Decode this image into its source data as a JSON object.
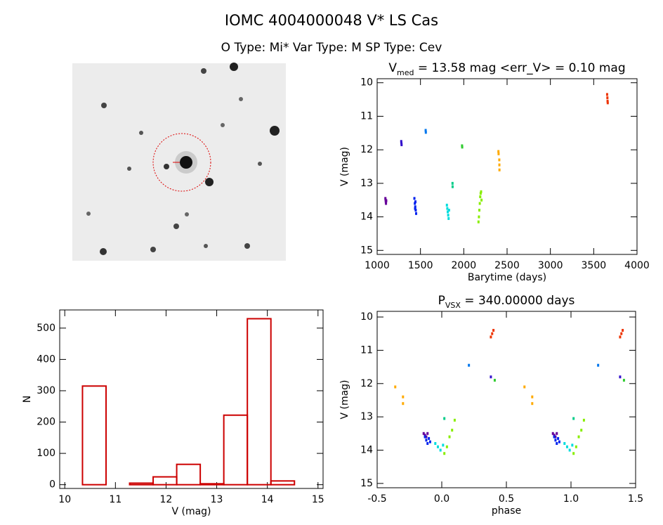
{
  "header": {
    "title": "IOMC 4004000048    V* LS Cas",
    "subtitle": "O Type: Mi*  Var Type: M  SP Type: Cev"
  },
  "chart_data": [
    {
      "type": "scatter",
      "title_parts": [
        "V",
        "med",
        " = 13.58 mag <err_V> = 0.10 mag"
      ],
      "xlabel": "Barytime (days)",
      "ylabel": "V (mag)",
      "xlim": [
        1000,
        4000
      ],
      "xticks": [
        1000,
        1500,
        2000,
        2500,
        3000,
        3500,
        4000
      ],
      "ylim": [
        15.12,
        9.88
      ],
      "yticks": [
        10,
        11,
        12,
        13,
        14,
        15
      ],
      "series": [
        {
          "color": "#660099",
          "x": [
            1095,
            1098,
            1100,
            1102,
            1105
          ],
          "values": [
            13.45,
            13.5,
            13.55,
            13.6,
            13.52
          ]
        },
        {
          "color": "#3311cc",
          "x": [
            1278,
            1280,
            1282
          ],
          "values": [
            11.75,
            11.8,
            11.85
          ]
        },
        {
          "color": "#0022ee",
          "x": [
            1430,
            1435,
            1440,
            1445,
            1450,
            1442,
            1438
          ],
          "values": [
            13.45,
            13.6,
            13.7,
            13.8,
            13.9,
            13.55,
            13.75
          ]
        },
        {
          "color": "#0077ee",
          "x": [
            1560,
            1562
          ],
          "values": [
            11.42,
            11.48
          ]
        },
        {
          "color": "#00dddd",
          "x": [
            1805,
            1810,
            1815,
            1820,
            1825,
            1830
          ],
          "values": [
            13.65,
            13.75,
            13.85,
            13.95,
            14.05,
            13.8
          ]
        },
        {
          "color": "#00cc88",
          "x": [
            1870,
            1871
          ],
          "values": [
            13.0,
            13.1
          ]
        },
        {
          "color": "#33cc33",
          "x": [
            1980,
            1982
          ],
          "values": [
            11.88,
            11.92
          ]
        },
        {
          "color": "#88ee00",
          "x": [
            2170,
            2175,
            2180,
            2185,
            2190,
            2195,
            2200,
            2205
          ],
          "values": [
            14.15,
            14.0,
            13.8,
            13.6,
            13.4,
            13.3,
            13.25,
            13.5
          ]
        },
        {
          "color": "#ffaa00",
          "x": [
            2400,
            2402,
            2410,
            2411,
            2412
          ],
          "values": [
            12.05,
            12.12,
            12.3,
            12.45,
            12.6
          ]
        },
        {
          "color": "#ee3300",
          "x": [
            3655,
            3658,
            3660,
            3662
          ],
          "values": [
            10.35,
            10.45,
            10.55,
            10.6
          ]
        }
      ]
    },
    {
      "type": "scatter",
      "title_parts": [
        "P",
        "VSX",
        " = 340.00000 days"
      ],
      "xlabel": "phase",
      "ylabel": "V (mag)",
      "xlim": [
        -0.5,
        1.5
      ],
      "xticks": [
        -0.5,
        {
          "value": 0,
          "label": "0.0"
        },
        0.5,
        {
          "value": 1,
          "label": "1.0"
        },
        1.5
      ],
      "ylim": [
        15.13,
        9.83
      ],
      "yticks": [
        10,
        11,
        12,
        13,
        14,
        15
      ],
      "series": [
        {
          "color": "#660099",
          "x": [
            -0.14,
            -0.13,
            -0.12,
            -0.11,
            0.86,
            0.87,
            0.88,
            0.89
          ],
          "values": [
            13.5,
            13.55,
            13.6,
            13.5,
            13.5,
            13.55,
            13.6,
            13.5
          ]
        },
        {
          "color": "#3311cc",
          "x": [
            0.38,
            1.38
          ],
          "values": [
            11.8,
            11.8
          ]
        },
        {
          "color": "#0022ee",
          "x": [
            -0.13,
            -0.12,
            -0.11,
            -0.1,
            -0.09,
            0.87,
            0.88,
            0.89,
            0.9,
            0.91
          ],
          "values": [
            13.6,
            13.7,
            13.8,
            13.65,
            13.75,
            13.6,
            13.7,
            13.8,
            13.65,
            13.75
          ]
        },
        {
          "color": "#0077ee",
          "x": [
            0.21,
            1.21
          ],
          "values": [
            11.45,
            11.45
          ]
        },
        {
          "color": "#00dddd",
          "x": [
            -0.05,
            -0.03,
            -0.01,
            0.01,
            0.95,
            0.97,
            0.99,
            1.01
          ],
          "values": [
            13.8,
            13.9,
            14.0,
            13.85,
            13.8,
            13.9,
            14.0,
            13.85
          ]
        },
        {
          "color": "#00cc88",
          "x": [
            0.02,
            1.02
          ],
          "values": [
            13.05,
            13.05
          ]
        },
        {
          "color": "#33cc33",
          "x": [
            0.41,
            1.41
          ],
          "values": [
            11.9,
            11.9
          ]
        },
        {
          "color": "#88ee00",
          "x": [
            0.02,
            0.04,
            0.06,
            0.08,
            0.1,
            1.02,
            1.04,
            1.06,
            1.08,
            1.1
          ],
          "values": [
            14.1,
            13.9,
            13.6,
            13.4,
            13.1,
            14.1,
            13.9,
            13.6,
            13.4,
            13.1
          ]
        },
        {
          "color": "#ffaa00",
          "x": [
            -0.36,
            -0.3,
            -0.3,
            0.64,
            0.7,
            0.7
          ],
          "values": [
            12.1,
            12.4,
            12.6,
            12.1,
            12.4,
            12.6
          ]
        },
        {
          "color": "#ee3300",
          "x": [
            0.38,
            0.39,
            0.4,
            1.38,
            1.39,
            1.4
          ],
          "values": [
            10.6,
            10.5,
            10.4,
            10.6,
            10.5,
            10.4
          ]
        }
      ]
    },
    {
      "type": "histogram",
      "xlabel": "V (mag)",
      "ylabel": "N",
      "color": "#cc0000",
      "bins": [
        10.35,
        10.815,
        11.28,
        11.745,
        12.21,
        12.675,
        13.14,
        13.605,
        14.07,
        14.535
      ],
      "values": [
        315,
        0,
        5,
        25,
        65,
        3,
        222,
        530,
        12
      ],
      "xlim": [
        9.9,
        15.1
      ],
      "xticks": [
        10,
        11,
        12,
        13,
        14,
        15
      ],
      "ylim": [
        -12,
        558
      ],
      "yticks": [
        0,
        100,
        200,
        300,
        400,
        500
      ]
    }
  ]
}
